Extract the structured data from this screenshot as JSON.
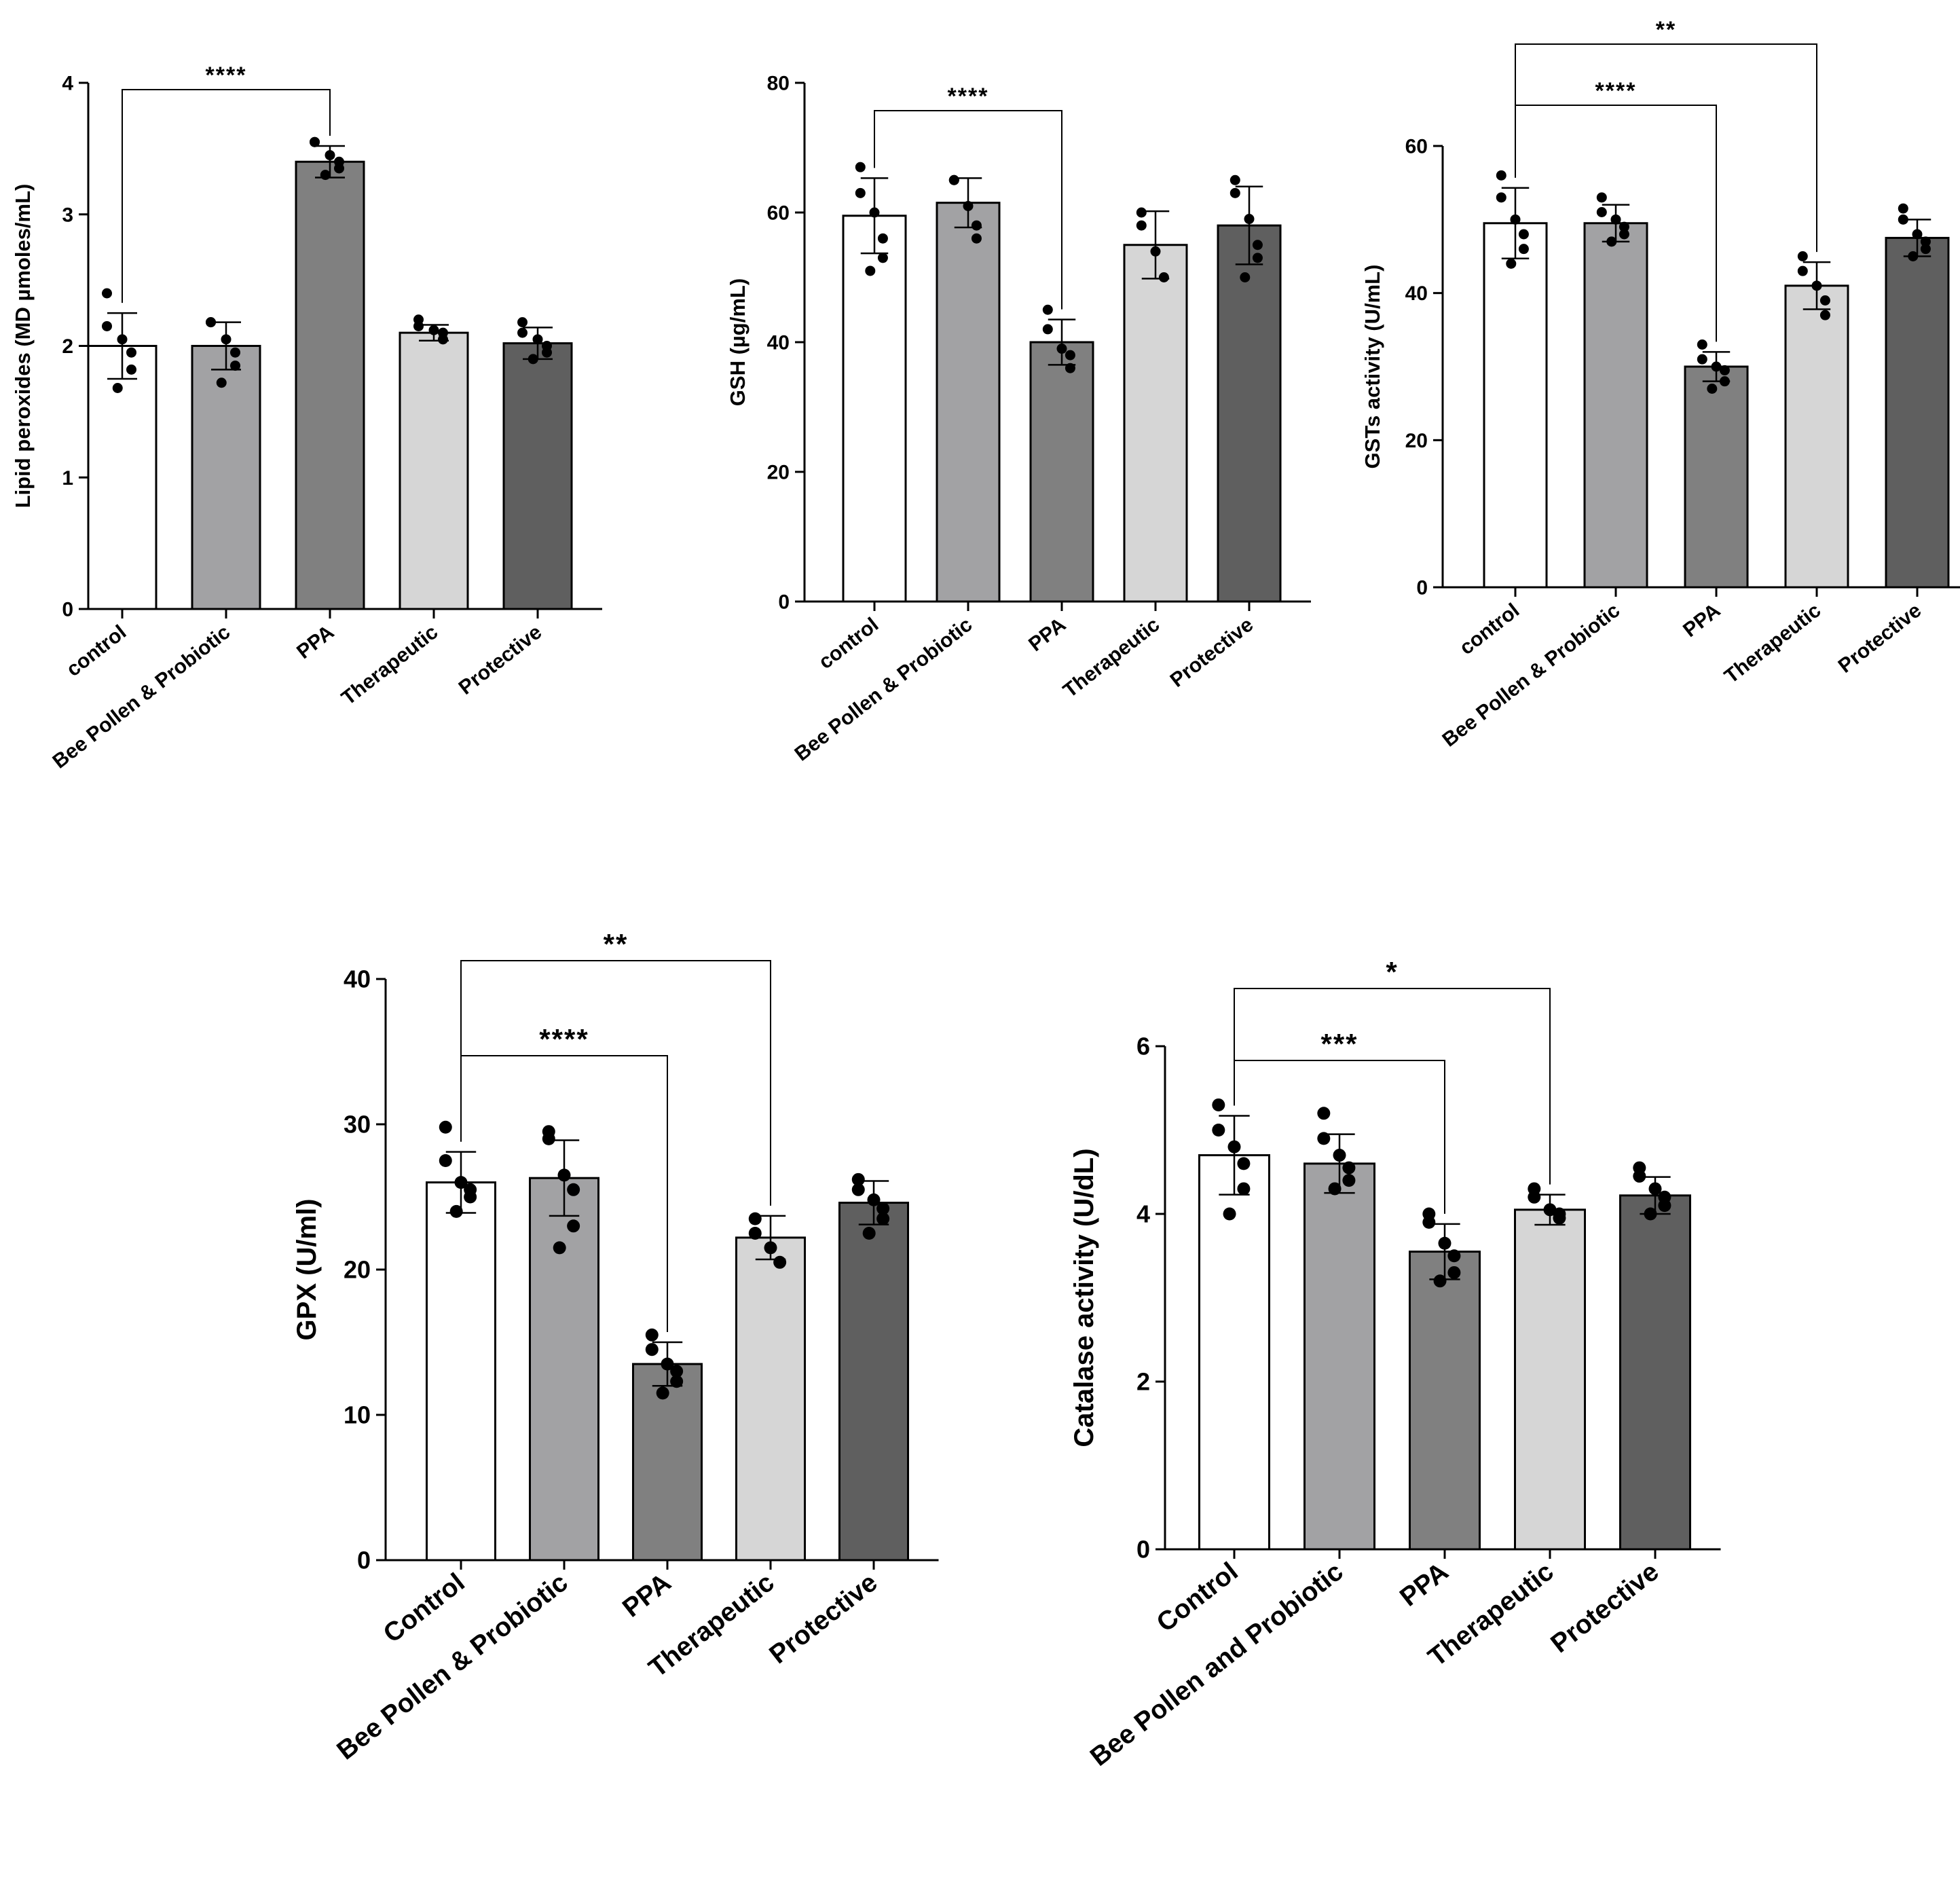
{
  "chart_data": [
    {
      "type": "bar",
      "ylabel": "Lipid peroxides (MD µmoles/mL)",
      "ylim": [
        0,
        4
      ],
      "yticks": [
        "0",
        "1",
        "2",
        "3",
        "4"
      ],
      "categories": [
        "control",
        "Bee Pollen & Probiotic",
        "PPA",
        "Therapeutic",
        "Protective"
      ],
      "values": [
        2.0,
        2.0,
        3.4,
        2.1,
        2.02
      ],
      "sd": [
        0.25,
        0.18,
        0.12,
        0.06,
        0.12
      ],
      "points": [
        [
          2.4,
          2.15,
          2.05,
          1.95,
          1.82,
          1.68
        ],
        [
          2.18,
          2.18,
          2.05,
          1.95,
          1.85,
          1.72
        ],
        [
          3.55,
          3.55,
          3.45,
          3.4,
          3.35,
          3.3
        ],
        [
          2.2,
          2.15,
          2.12,
          2.1,
          2.05
        ],
        [
          2.18,
          2.1,
          2.05,
          2.0,
          1.95,
          1.9
        ]
      ],
      "colors": [
        "#ffffff",
        "#a2a2a4",
        "#808080",
        "#d6d6d6",
        "#5f5f5f"
      ],
      "significance": [
        {
          "from": 0,
          "to": 2,
          "label": "****"
        }
      ]
    },
    {
      "type": "bar",
      "ylabel": "GSH (µg/mL)",
      "ylim": [
        0,
        80
      ],
      "yticks": [
        "0",
        "20",
        "40",
        "60",
        "80"
      ],
      "categories": [
        "control",
        "Bee Pollen & Probiotic",
        "PPA",
        "Therapeutic",
        "Protective"
      ],
      "values": [
        59.5,
        61.5,
        40,
        55,
        58
      ],
      "sd": [
        5.8,
        3.8,
        3.5,
        5.2,
        6
      ],
      "points": [
        [
          67,
          63,
          60,
          56,
          53,
          51
        ],
        [
          65,
          65,
          61,
          58,
          56
        ],
        [
          45,
          42,
          39,
          38,
          36
        ],
        [
          60,
          58,
          54,
          50
        ],
        [
          65,
          63,
          59,
          55,
          53,
          50
        ]
      ],
      "colors": [
        "#ffffff",
        "#a2a2a4",
        "#808080",
        "#d6d6d6",
        "#5f5f5f"
      ],
      "significance": [
        {
          "from": 0,
          "to": 2,
          "label": "****"
        }
      ]
    },
    {
      "type": "bar",
      "ylabel": "GSTs activity (U/mL)",
      "ylim": [
        0,
        60
      ],
      "yticks": [
        "0",
        "20",
        "40",
        "60"
      ],
      "categories": [
        "control",
        "Bee Pollen & Probiotic",
        "PPA",
        "Therapeutic",
        "Protective"
      ],
      "values": [
        49.5,
        49.5,
        30,
        41,
        47.5
      ],
      "sd": [
        4.8,
        2.5,
        2,
        3.2,
        2.5
      ],
      "points": [
        [
          56,
          53,
          50,
          48,
          46,
          44
        ],
        [
          53,
          51,
          50,
          49,
          48,
          47
        ],
        [
          33,
          31,
          30,
          29.5,
          28,
          27
        ],
        [
          45,
          43,
          41,
          39,
          37
        ],
        [
          51.5,
          50,
          48,
          47,
          46,
          45
        ]
      ],
      "colors": [
        "#ffffff",
        "#a2a2a4",
        "#808080",
        "#d6d6d6",
        "#5f5f5f"
      ],
      "significance": [
        {
          "from": 0,
          "to": 2,
          "label": "****"
        },
        {
          "from": 0,
          "to": 3,
          "label": "**"
        }
      ]
    },
    {
      "type": "bar",
      "ylabel": "GPX (U/ml)",
      "ylim": [
        0,
        40
      ],
      "yticks": [
        "0",
        "10",
        "20",
        "30",
        "40"
      ],
      "categories": [
        "Control",
        "Bee Pollen & Probiotic",
        "PPA",
        "Therapeutic",
        "Protective"
      ],
      "values": [
        26,
        26.3,
        13.5,
        22.2,
        24.6
      ],
      "sd": [
        2.1,
        2.6,
        1.5,
        1.5,
        1.5
      ],
      "points": [
        [
          29.8,
          27.5,
          26,
          25.5,
          25,
          24
        ],
        [
          29.5,
          29,
          26.5,
          25.5,
          23,
          21.5
        ],
        [
          15.5,
          14.5,
          13.5,
          13,
          12.3,
          11.5
        ],
        [
          23.5,
          22.5,
          21.5,
          20.5
        ],
        [
          26.2,
          25.5,
          24.8,
          24.2,
          23.5,
          22.5
        ]
      ],
      "colors": [
        "#ffffff",
        "#a2a2a4",
        "#808080",
        "#d6d6d6",
        "#5f5f5f"
      ],
      "significance": [
        {
          "from": 0,
          "to": 2,
          "label": "****"
        },
        {
          "from": 0,
          "to": 3,
          "label": "**"
        }
      ]
    },
    {
      "type": "bar",
      "ylabel": "Catalase activity (U/dL)",
      "ylim": [
        0,
        6
      ],
      "yticks": [
        "0",
        "2",
        "4",
        "6"
      ],
      "categories": [
        "Control",
        "Bee Pollen and Probiotic",
        "PPA",
        "Therapeutic",
        "Protective"
      ],
      "values": [
        4.7,
        4.6,
        3.55,
        4.05,
        4.22
      ],
      "sd": [
        0.47,
        0.35,
        0.33,
        0.18,
        0.22
      ],
      "points": [
        [
          5.3,
          5.0,
          4.8,
          4.6,
          4.3,
          4.0
        ],
        [
          5.2,
          4.9,
          4.7,
          4.55,
          4.4,
          4.3
        ],
        [
          4.0,
          3.9,
          3.65,
          3.5,
          3.3,
          3.2
        ],
        [
          4.3,
          4.2,
          4.05,
          4.0,
          3.95
        ],
        [
          4.55,
          4.45,
          4.3,
          4.2,
          4.1,
          4.0
        ]
      ],
      "colors": [
        "#ffffff",
        "#a2a2a4",
        "#808080",
        "#d6d6d6",
        "#5f5f5f"
      ],
      "significance": [
        {
          "from": 0,
          "to": 2,
          "label": "***"
        },
        {
          "from": 0,
          "to": 3,
          "label": "*"
        }
      ]
    }
  ]
}
